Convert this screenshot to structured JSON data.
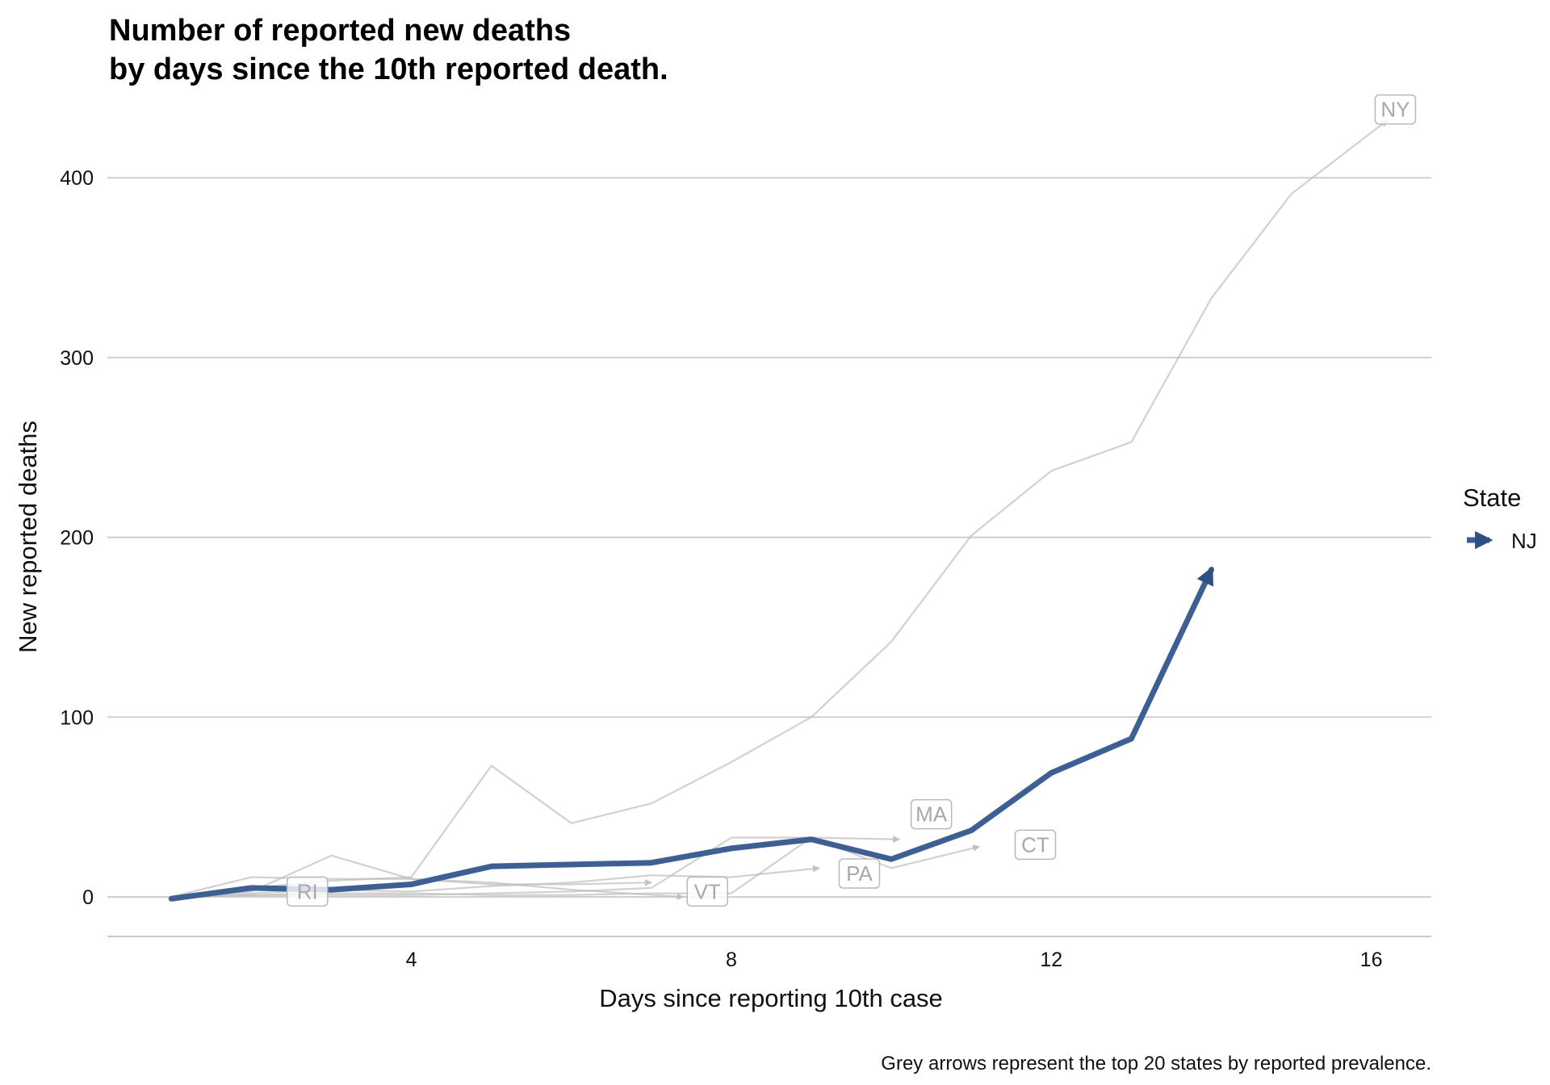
{
  "chart_data": {
    "type": "line",
    "title_lines": [
      "Number of reported new deaths",
      "by days since the 10th reported death."
    ],
    "xlabel": "Days since reporting 10th case",
    "ylabel": "New reported deaths",
    "caption": "Grey arrows represent the top 20 states by reported prevalence.",
    "xlim": [
      0.2,
      16.75
    ],
    "ylim": [
      -22,
      445
    ],
    "x_ticks": [
      4,
      8,
      12,
      16
    ],
    "y_ticks": [
      0,
      100,
      200,
      300,
      400
    ],
    "grid": "horizontal major",
    "legend": {
      "title": "State",
      "position": "right",
      "entries": [
        "NJ"
      ]
    },
    "highlight_color": "#3d5f94",
    "background_color": "#bdbdbd",
    "highlight_series": [
      {
        "name": "NJ",
        "x": [
          1,
          2,
          3,
          4,
          5,
          7,
          8,
          9,
          10,
          11,
          12,
          13,
          14
        ],
        "y": [
          -1,
          5,
          4,
          7,
          17,
          19,
          27,
          32,
          21,
          37,
          69,
          88,
          182
        ]
      }
    ],
    "background_series": [
      {
        "label": "NY",
        "x": [
          1,
          2,
          3,
          4,
          5,
          6,
          7,
          8,
          9,
          10,
          11,
          12,
          13,
          14,
          15,
          16.2
        ],
        "y": [
          0,
          5,
          9,
          11,
          73,
          41,
          52,
          75,
          100,
          142,
          201,
          237,
          253,
          333,
          391,
          432
        ]
      },
      {
        "label": "MA",
        "x": [
          1,
          2,
          3,
          4,
          5,
          6,
          7,
          8,
          9,
          10.1
        ],
        "y": [
          0,
          1,
          1,
          1,
          2,
          3,
          5,
          33,
          33,
          32
        ]
      },
      {
        "label": "CT",
        "x": [
          1,
          2,
          3,
          4,
          5,
          6,
          7,
          8,
          9,
          10,
          11.1
        ],
        "y": [
          0,
          1,
          2,
          2,
          1,
          1,
          2,
          2,
          33,
          16,
          28
        ]
      },
      {
        "label": "PA",
        "x": [
          1,
          2,
          3,
          4,
          5,
          6,
          7,
          8,
          9.1
        ],
        "y": [
          0,
          2,
          4,
          3,
          6,
          8,
          12,
          11,
          16
        ]
      },
      {
        "label": "VT",
        "x": [
          1,
          2,
          3,
          4,
          5,
          6,
          7.4
        ],
        "y": [
          0,
          3,
          23,
          10,
          8,
          4,
          0
        ]
      },
      {
        "label": "RI",
        "x": [
          1,
          2,
          3,
          4,
          5,
          6,
          7
        ],
        "y": [
          0,
          11,
          10,
          10,
          7,
          7,
          8
        ]
      }
    ],
    "label_positions": [
      {
        "text": "NY",
        "x": 16.3,
        "y": 438
      },
      {
        "text": "MA",
        "x": 10.5,
        "y": 46
      },
      {
        "text": "CT",
        "x": 11.8,
        "y": 29
      },
      {
        "text": "PA",
        "x": 9.6,
        "y": 13
      },
      {
        "text": "VT",
        "x": 7.7,
        "y": 3
      },
      {
        "text": "RI",
        "x": 2.7,
        "y": 3
      }
    ]
  }
}
